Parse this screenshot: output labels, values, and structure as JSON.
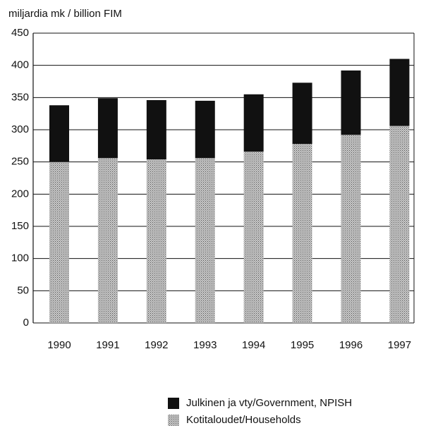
{
  "chart_data": {
    "type": "bar",
    "stacked": true,
    "ylabel": "miljardia mk / billion FIM",
    "categories": [
      "1990",
      "1991",
      "1992",
      "1993",
      "1994",
      "1995",
      "1996",
      "1997"
    ],
    "series": [
      {
        "name": "Kotitaloudet/Households",
        "color": "#9a9a9a",
        "values": [
          250,
          256,
          254,
          256,
          266,
          278,
          292,
          306
        ]
      },
      {
        "name": "Julkinen ja vty/Government, NPISH",
        "color": "#111111",
        "values": [
          88,
          93,
          92,
          89,
          89,
          95,
          100,
          104
        ]
      }
    ],
    "ylim": [
      0,
      450
    ],
    "yticks": [
      0,
      50,
      100,
      150,
      200,
      250,
      300,
      350,
      400,
      450
    ],
    "grid": true
  }
}
